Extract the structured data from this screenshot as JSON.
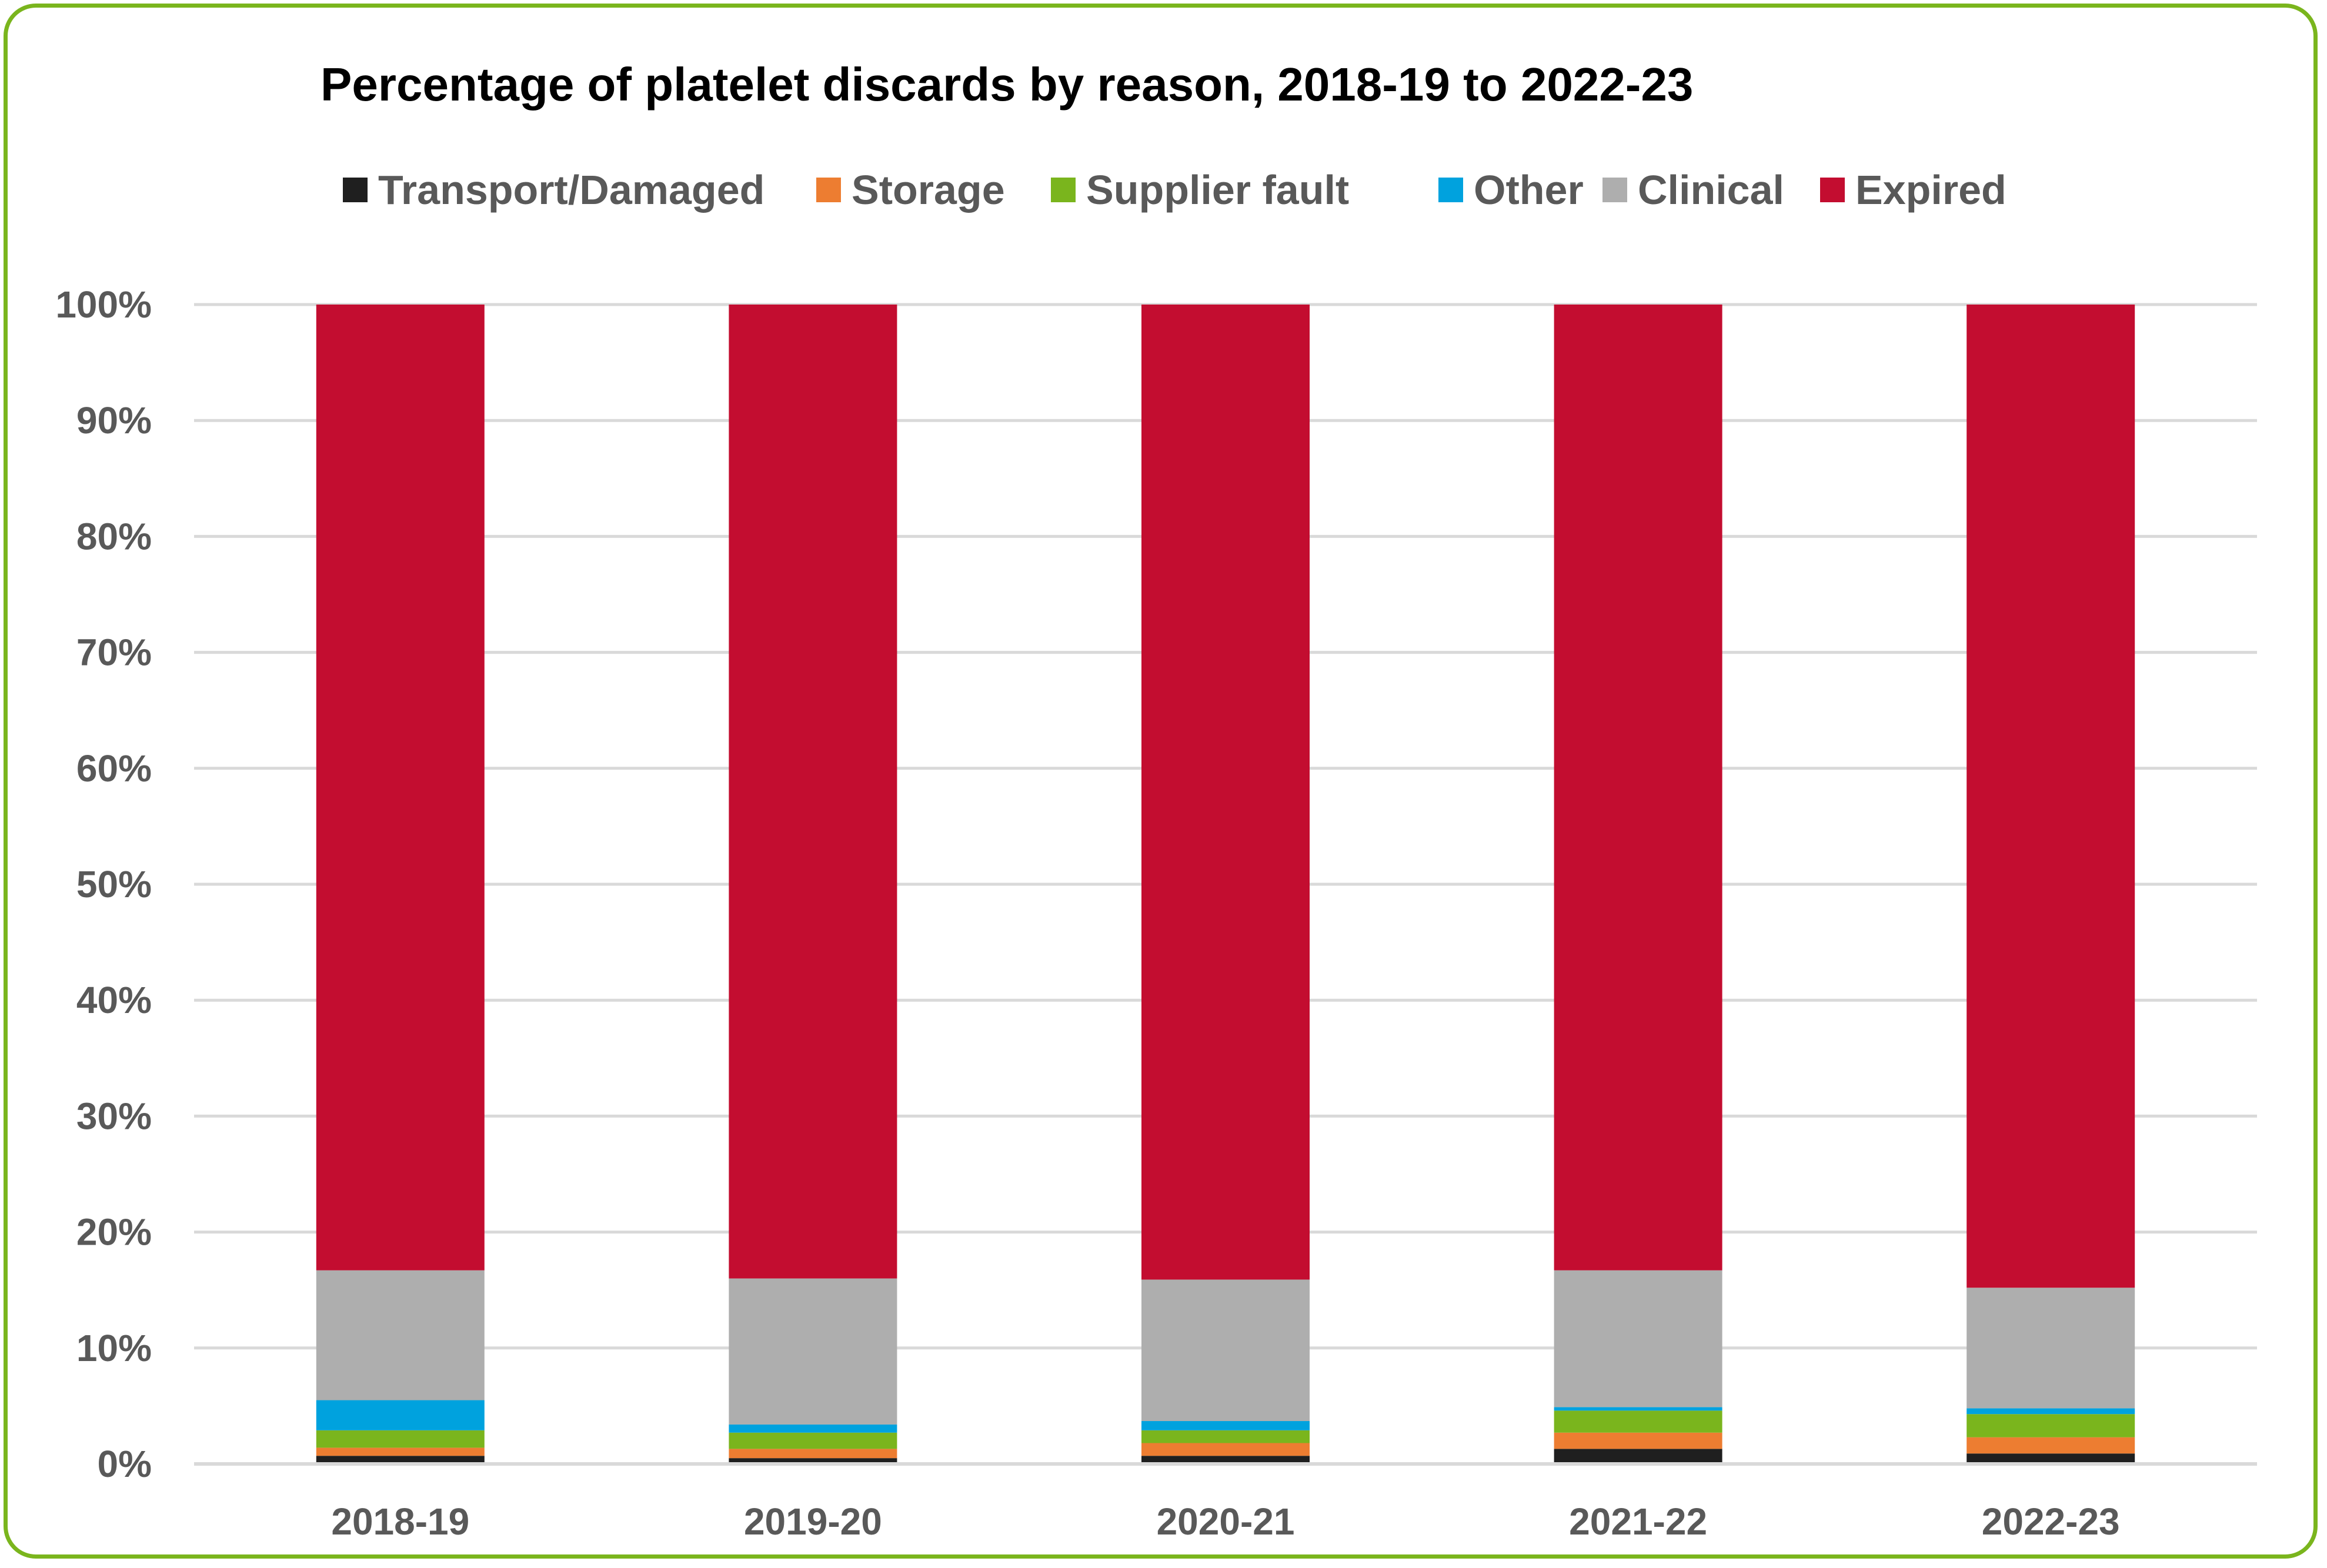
{
  "chart_data": {
    "type": "bar",
    "stacked": true,
    "title": "Percentage of platelet discards by reason, 2018-19 to 2022-23",
    "categories": [
      "2018-19",
      "2019-20",
      "2020-21",
      "2021-22",
      "2022-23"
    ],
    "ylim": [
      0,
      100
    ],
    "yticks": [
      "0%",
      "10%",
      "20%",
      "30%",
      "40%",
      "50%",
      "60%",
      "70%",
      "80%",
      "90%",
      "100%"
    ],
    "grid": true,
    "legend_position": "top",
    "series": [
      {
        "name": "Transport/Damaged",
        "color": "#1f1f1f",
        "values": [
          0.7,
          0.5,
          0.7,
          1.3,
          0.9
        ]
      },
      {
        "name": "Storage",
        "color": "#ed7d31",
        "values": [
          0.7,
          0.8,
          1.1,
          1.4,
          1.4
        ]
      },
      {
        "name": "Supplier fault",
        "color": "#7ab51d",
        "values": [
          1.5,
          1.4,
          1.1,
          1.9,
          2.0
        ]
      },
      {
        "name": "Other",
        "color": "#00a2de",
        "values": [
          2.6,
          0.7,
          0.8,
          0.3,
          0.5
        ]
      },
      {
        "name": "Clinical",
        "color": "#aeaeae",
        "values": [
          11.2,
          12.6,
          12.2,
          11.8,
          10.4
        ]
      },
      {
        "name": "Expired",
        "color": "#c30d30",
        "values": [
          83.3,
          84.0,
          84.1,
          83.3,
          84.8
        ]
      }
    ]
  }
}
